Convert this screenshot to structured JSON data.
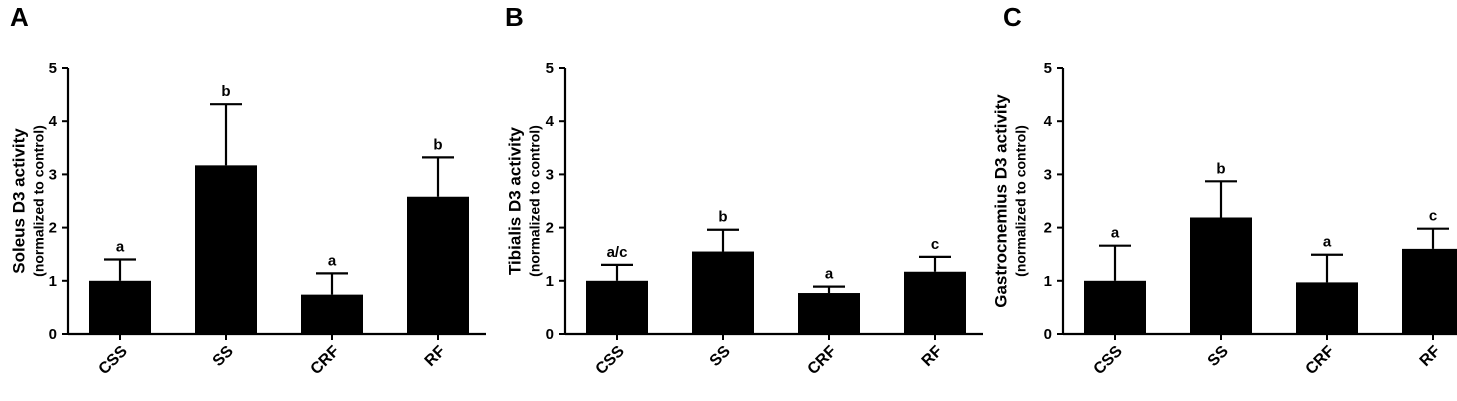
{
  "chart_data": [
    {
      "type": "bar",
      "panel": "A",
      "ylabel": "Soleus D3 activity",
      "ylabel_sub": "(normalized to control)",
      "categories": [
        "CSS",
        "SS",
        "CRF",
        "RF"
      ],
      "values": [
        1.0,
        3.17,
        0.74,
        2.58
      ],
      "errors": [
        0.4,
        1.15,
        0.4,
        0.74
      ],
      "significance": [
        "a",
        "b",
        "a",
        "b"
      ],
      "ylim": [
        0,
        5
      ],
      "yticks": [
        "0",
        "1",
        "2",
        "3",
        "4",
        "5"
      ],
      "bar_color": "#000000"
    },
    {
      "type": "bar",
      "panel": "B",
      "ylabel": "Tibialis D3 activity",
      "ylabel_sub": "(normalized to control)",
      "categories": [
        "CSS",
        "SS",
        "CRF",
        "RF"
      ],
      "values": [
        1.0,
        1.55,
        0.77,
        1.17
      ],
      "errors": [
        0.3,
        0.41,
        0.12,
        0.28
      ],
      "significance": [
        "a/c",
        "b",
        "a",
        "c"
      ],
      "ylim": [
        0,
        5
      ],
      "yticks": [
        "0",
        "1",
        "2",
        "3",
        "4",
        "5"
      ],
      "bar_color": "#000000"
    },
    {
      "type": "bar",
      "panel": "C",
      "ylabel": "Gastrocnemius D3 activity",
      "ylabel_sub": "(normalized to control)",
      "categories": [
        "CSS",
        "SS",
        "CRF",
        "RF"
      ],
      "values": [
        1.0,
        2.19,
        0.97,
        1.6
      ],
      "errors": [
        0.66,
        0.68,
        0.52,
        0.38
      ],
      "significance": [
        "a",
        "b",
        "a",
        "c"
      ],
      "ylim": [
        0,
        5
      ],
      "yticks": [
        "0",
        "1",
        "2",
        "3",
        "4",
        "5"
      ],
      "bar_color": "#000000"
    }
  ]
}
